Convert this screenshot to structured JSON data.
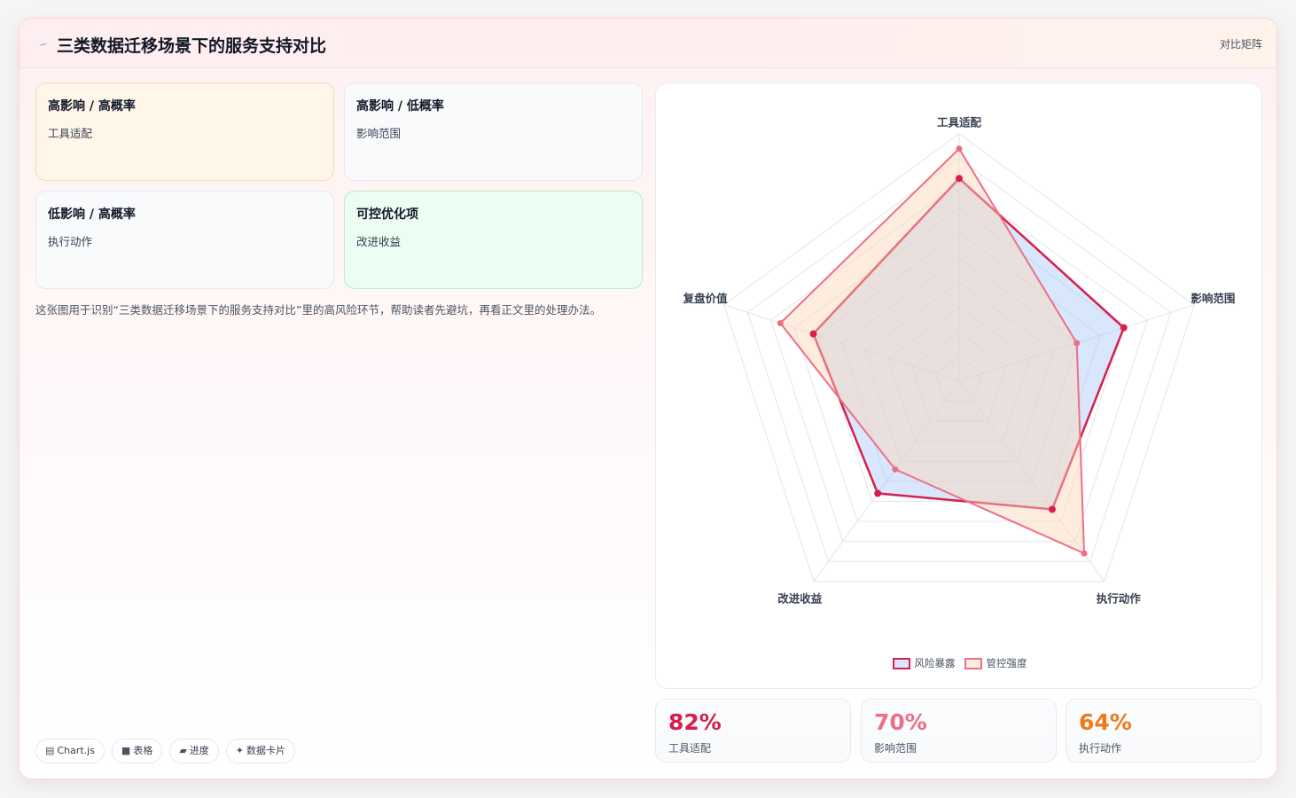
{
  "header": {
    "title": "三类数据迁移场景下的服务支持对比",
    "link_label": "对比矩阵"
  },
  "quadrants": [
    {
      "title": "高影响 / 高概率",
      "item": "工具适配"
    },
    {
      "title": "高影响 / 低概率",
      "item": "影响范围"
    },
    {
      "title": "低影响 / 高概率",
      "item": "执行动作"
    },
    {
      "title": "可控优化项",
      "item": "改进收益"
    }
  ],
  "description": "这张图用于识别“三类数据迁移场景下的服务支持对比”里的高风险环节，帮助读者先避坑，再看正文里的处理办法。",
  "tags": [
    {
      "icon": "table-icon",
      "glyph": "▤",
      "label": "Chart.js"
    },
    {
      "icon": "grid-icon",
      "glyph": "■",
      "label": "表格"
    },
    {
      "icon": "progress-icon",
      "glyph": "▰",
      "label": "进度"
    },
    {
      "icon": "sparkle-icon",
      "glyph": "✦",
      "label": "数据卡片"
    }
  ],
  "colors": {
    "risk": "#d61f4e",
    "risk_fill": "rgba(147,187,250,0.35)",
    "control": "#ec6f88",
    "control_fill": "rgba(252,215,185,0.45)",
    "stat1": "#d61f4e",
    "stat2": "#ec6f88",
    "stat3": "#f07a1a"
  },
  "chart_data": {
    "type": "radar",
    "axes": [
      "工具适配",
      "影响范围",
      "执行动作",
      "改进收益",
      "复盘价值"
    ],
    "r_range": [
      0,
      100
    ],
    "grid": true,
    "legend_position": "bottom",
    "series": [
      {
        "name": "风险暴露",
        "values": [
          82,
          70,
          64,
          56,
          62
        ]
      },
      {
        "name": "管控强度",
        "values": [
          94,
          50,
          86,
          44,
          76
        ]
      }
    ]
  },
  "stats": [
    {
      "value": "82%",
      "label": "工具适配"
    },
    {
      "value": "70%",
      "label": "影响范围"
    },
    {
      "value": "64%",
      "label": "执行动作"
    }
  ]
}
